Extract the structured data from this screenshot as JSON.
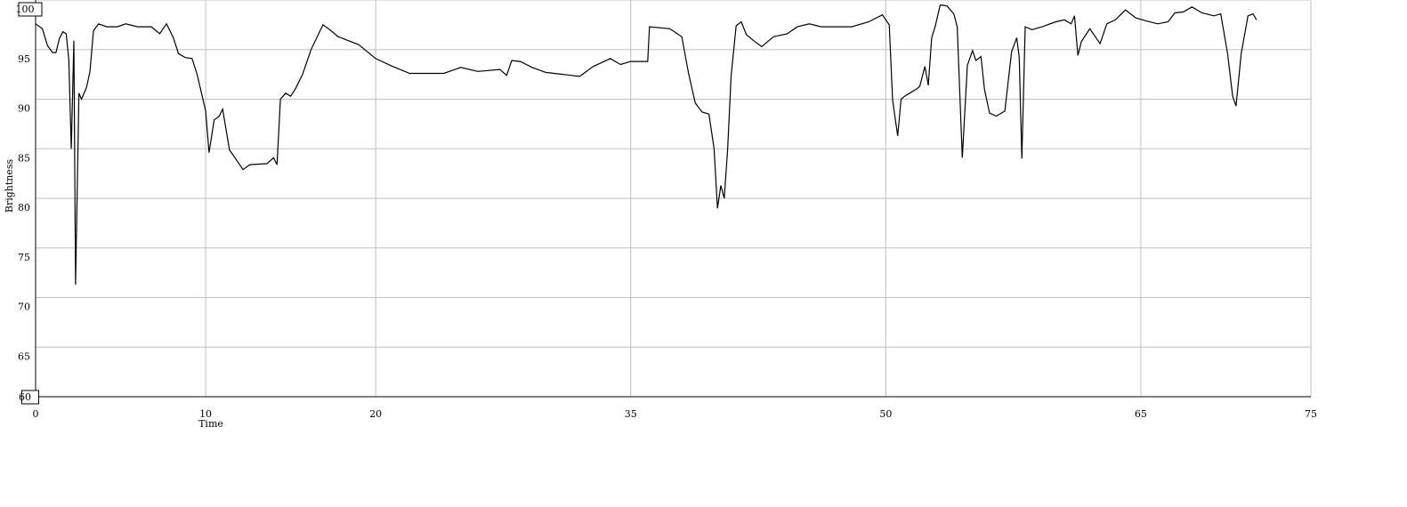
{
  "chart_data": {
    "type": "line",
    "xlabel": "Time",
    "ylabel": "Brightness",
    "xlim": [
      0,
      75
    ],
    "ylim": [
      60,
      100
    ],
    "x_ticks": [
      0,
      10,
      20,
      35,
      50,
      65,
      75
    ],
    "x_tick_labels": [
      "0",
      "10",
      "20",
      "35",
      "50",
      "65",
      "75"
    ],
    "y_ticks": [
      60,
      65,
      70,
      75,
      80,
      85,
      90,
      95,
      100
    ],
    "y_tick_labels": [
      "60",
      "65",
      "70",
      "75",
      "80",
      "85",
      "90",
      "95",
      "100"
    ],
    "boxed_y_ticks": [
      "60",
      "100"
    ],
    "grid": true,
    "series": [
      {
        "values": [
          [
            0.0,
            97.6
          ],
          [
            0.4,
            97.1
          ],
          [
            0.7,
            95.4
          ],
          [
            1.0,
            94.7
          ],
          [
            1.2,
            94.7
          ],
          [
            1.4,
            96.1
          ],
          [
            1.6,
            96.8
          ],
          [
            1.8,
            96.6
          ],
          [
            1.95,
            94.0
          ],
          [
            2.1,
            85.0
          ],
          [
            2.25,
            95.9
          ],
          [
            2.35,
            71.3
          ],
          [
            2.55,
            90.6
          ],
          [
            2.7,
            90.0
          ],
          [
            3.0,
            91.2
          ],
          [
            3.2,
            92.8
          ],
          [
            3.4,
            96.9
          ],
          [
            3.7,
            97.6
          ],
          [
            4.2,
            97.3
          ],
          [
            4.8,
            97.3
          ],
          [
            5.3,
            97.6
          ],
          [
            6.0,
            97.3
          ],
          [
            6.8,
            97.3
          ],
          [
            7.3,
            96.6
          ],
          [
            7.7,
            97.6
          ],
          [
            8.1,
            96.2
          ],
          [
            8.4,
            94.6
          ],
          [
            8.8,
            94.2
          ],
          [
            9.2,
            94.1
          ],
          [
            9.5,
            92.5
          ],
          [
            10.0,
            88.8
          ],
          [
            10.2,
            84.6
          ],
          [
            10.5,
            87.9
          ],
          [
            10.8,
            88.3
          ],
          [
            11.0,
            89.0
          ],
          [
            11.4,
            84.9
          ],
          [
            12.2,
            82.9
          ],
          [
            12.6,
            83.4
          ],
          [
            13.6,
            83.5
          ],
          [
            14.0,
            84.1
          ],
          [
            14.2,
            83.4
          ],
          [
            14.4,
            90.0
          ],
          [
            14.7,
            90.6
          ],
          [
            15.0,
            90.3
          ],
          [
            15.3,
            91.1
          ],
          [
            15.7,
            92.5
          ],
          [
            16.2,
            95.0
          ],
          [
            16.9,
            97.5
          ],
          [
            17.3,
            97.0
          ],
          [
            17.8,
            96.3
          ],
          [
            19.0,
            95.5
          ],
          [
            20.0,
            94.1
          ],
          [
            21.0,
            93.3
          ],
          [
            22.0,
            92.6
          ],
          [
            23.0,
            92.6
          ],
          [
            24.0,
            92.6
          ],
          [
            25.0,
            93.2
          ],
          [
            26.0,
            92.8
          ],
          [
            27.3,
            93.0
          ],
          [
            27.7,
            92.4
          ],
          [
            28.0,
            93.9
          ],
          [
            28.5,
            93.8
          ],
          [
            29.2,
            93.2
          ],
          [
            30.0,
            92.7
          ],
          [
            31.0,
            92.5
          ],
          [
            32.0,
            92.3
          ],
          [
            32.8,
            93.3
          ],
          [
            33.8,
            94.1
          ],
          [
            34.4,
            93.5
          ],
          [
            35.0,
            93.8
          ],
          [
            36.0,
            93.8
          ],
          [
            36.1,
            97.3
          ],
          [
            37.3,
            97.1
          ],
          [
            38.0,
            96.3
          ],
          [
            38.4,
            92.6
          ],
          [
            38.8,
            89.6
          ],
          [
            39.2,
            88.7
          ],
          [
            39.6,
            88.5
          ],
          [
            39.9,
            85.0
          ],
          [
            40.1,
            79.0
          ],
          [
            40.3,
            81.3
          ],
          [
            40.5,
            80.0
          ],
          [
            40.7,
            84.9
          ],
          [
            40.9,
            92.3
          ],
          [
            41.2,
            97.4
          ],
          [
            41.5,
            97.8
          ],
          [
            41.8,
            96.5
          ],
          [
            42.3,
            95.8
          ],
          [
            42.7,
            95.3
          ],
          [
            43.4,
            96.3
          ],
          [
            44.2,
            96.6
          ],
          [
            44.8,
            97.3
          ],
          [
            45.5,
            97.6
          ],
          [
            46.2,
            97.3
          ],
          [
            47.0,
            97.3
          ],
          [
            48.0,
            97.3
          ],
          [
            49.0,
            97.8
          ],
          [
            49.8,
            98.5
          ],
          [
            50.2,
            97.5
          ],
          [
            50.4,
            89.9
          ],
          [
            50.7,
            86.3
          ],
          [
            50.9,
            90.0
          ],
          [
            51.1,
            90.3
          ],
          [
            51.4,
            90.6
          ],
          [
            51.8,
            91.0
          ],
          [
            52.0,
            91.3
          ],
          [
            52.3,
            93.3
          ],
          [
            52.5,
            91.4
          ],
          [
            52.7,
            96.2
          ],
          [
            52.9,
            97.3
          ],
          [
            53.2,
            99.5
          ],
          [
            53.6,
            99.4
          ],
          [
            54.0,
            98.6
          ],
          [
            54.2,
            97.3
          ],
          [
            54.5,
            84.1
          ],
          [
            54.8,
            93.4
          ],
          [
            55.1,
            94.9
          ],
          [
            55.3,
            93.9
          ],
          [
            55.6,
            94.3
          ],
          [
            55.8,
            91.0
          ],
          [
            56.1,
            88.6
          ],
          [
            56.5,
            88.3
          ],
          [
            57.0,
            88.8
          ],
          [
            57.4,
            94.8
          ],
          [
            57.7,
            96.2
          ],
          [
            57.85,
            94.2
          ],
          [
            58.0,
            84.0
          ],
          [
            58.2,
            97.3
          ],
          [
            58.6,
            97.0
          ],
          [
            59.2,
            97.3
          ],
          [
            60.0,
            97.8
          ],
          [
            60.5,
            98.0
          ],
          [
            60.9,
            97.6
          ],
          [
            61.1,
            98.4
          ],
          [
            61.3,
            94.4
          ],
          [
            61.5,
            95.8
          ],
          [
            62.0,
            97.1
          ],
          [
            62.6,
            95.6
          ],
          [
            63.0,
            97.6
          ],
          [
            63.5,
            98.0
          ],
          [
            64.1,
            99.0
          ],
          [
            64.7,
            98.2
          ],
          [
            65.3,
            97.9
          ],
          [
            66.0,
            97.6
          ],
          [
            66.6,
            97.8
          ],
          [
            67.0,
            98.7
          ],
          [
            67.5,
            98.8
          ],
          [
            68.0,
            99.3
          ],
          [
            68.6,
            98.7
          ],
          [
            69.3,
            98.4
          ],
          [
            69.7,
            98.6
          ],
          [
            70.1,
            94.6
          ],
          [
            70.4,
            90.3
          ],
          [
            70.6,
            89.3
          ],
          [
            70.9,
            94.6
          ],
          [
            71.3,
            98.4
          ],
          [
            71.6,
            98.6
          ],
          [
            71.8,
            98.0
          ]
        ]
      }
    ]
  }
}
